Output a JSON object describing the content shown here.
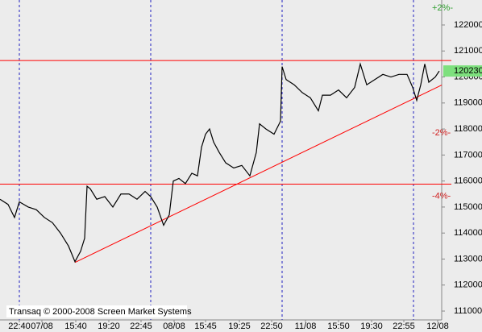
{
  "chart_data": {
    "type": "line",
    "footer": "Transaq © 2000-2008 Screen Market Systems",
    "x": [
      0,
      10,
      18,
      24,
      35,
      45,
      55,
      65,
      75,
      85,
      93,
      100,
      105,
      108,
      112,
      120,
      130,
      140,
      150,
      160,
      170,
      180,
      187,
      195,
      203,
      210,
      215,
      222,
      230,
      238,
      245,
      250,
      255,
      260,
      265,
      272,
      280,
      290,
      300,
      310,
      318,
      322,
      330,
      340,
      348,
      350,
      355,
      365,
      375,
      385,
      395,
      400,
      410,
      420,
      430,
      440,
      447,
      455,
      465,
      475,
      485,
      495,
      505,
      512,
      517,
      522,
      527,
      532,
      540,
      545
    ],
    "series": [
      {
        "color": "#000000",
        "values": [
          115300,
          115100,
          114600,
          115200,
          115000,
          114900,
          114600,
          114400,
          114000,
          113500,
          112900,
          113300,
          113800,
          115800,
          115700,
          115300,
          115400,
          115000,
          115500,
          115500,
          115300,
          115600,
          115400,
          115000,
          114300,
          114700,
          116000,
          116100,
          115900,
          116300,
          116200,
          117300,
          117800,
          118000,
          117500,
          117100,
          116700,
          116500,
          116600,
          116200,
          117100,
          118200,
          118000,
          117800,
          118300,
          120400,
          119900,
          119700,
          119400,
          119200,
          118700,
          119300,
          119300,
          119500,
          119200,
          119600,
          120500,
          119700,
          119900,
          120100,
          120000,
          120100,
          120100,
          119600,
          119100,
          119700,
          120500,
          119800,
          120000,
          120230
        ]
      }
    ],
    "xlim": [
      0,
      548
    ],
    "ylim": [
      110660,
      122960
    ],
    "xticks": [
      {
        "value": 24,
        "label": "22:40"
      },
      {
        "value": 52,
        "label": "07/08"
      },
      {
        "value": 94,
        "label": "15:40"
      },
      {
        "value": 135,
        "label": "19:20"
      },
      {
        "value": 175,
        "label": "22:45"
      },
      {
        "value": 216,
        "label": "08/08"
      },
      {
        "value": 255,
        "label": "15:45"
      },
      {
        "value": 297,
        "label": "19:25"
      },
      {
        "value": 337,
        "label": "22:50"
      },
      {
        "value": 379,
        "label": "11/08"
      },
      {
        "value": 420,
        "label": "15:50"
      },
      {
        "value": 461,
        "label": "19:30"
      },
      {
        "value": 501,
        "label": "22:55"
      },
      {
        "value": 543,
        "label": "12/08"
      }
    ],
    "yticks": [
      111000,
      112000,
      113000,
      114000,
      115000,
      116000,
      117000,
      118000,
      119000,
      120000,
      121000,
      122000
    ],
    "percent_levels": [
      {
        "value": 122650,
        "label": "+2%-",
        "color": "#2e9e2e"
      },
      {
        "value": 117840,
        "label": "-2%-",
        "color": "#d02020"
      },
      {
        "value": 115420,
        "label": "-4%-",
        "color": "#d02020"
      }
    ],
    "last_price": 120230,
    "hlines": [
      {
        "value": 120634,
        "color": "#ff0000"
      },
      {
        "value": 115882,
        "color": "#ff0000"
      }
    ],
    "trendline": {
      "x": [
        93,
        548
      ],
      "values": [
        112870,
        119690
      ],
      "color": "#ff0000"
    },
    "day_separators": [
      24,
      187,
      350,
      513
    ]
  }
}
